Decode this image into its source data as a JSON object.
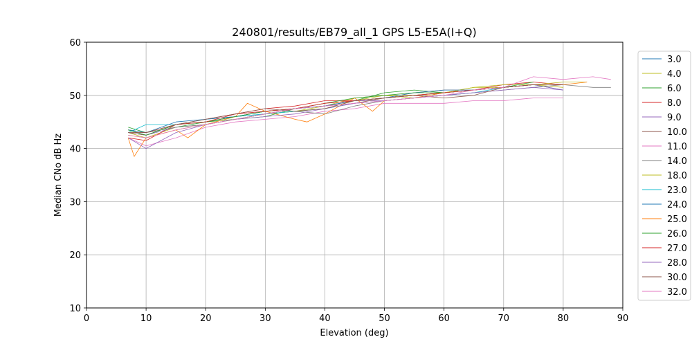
{
  "chart_data": {
    "type": "line",
    "title": "240801/results/EB79_all_1 GPS L5-E5A(I+Q)",
    "xlabel": "Elevation (deg)",
    "ylabel": "Median CNo dB Hz",
    "xlim": [
      0,
      90
    ],
    "ylim": [
      10,
      60
    ],
    "xticks": [
      "0",
      "10",
      "20",
      "30",
      "40",
      "50",
      "60",
      "70",
      "80",
      "90"
    ],
    "yticks": [
      "10",
      "20",
      "30",
      "40",
      "50",
      "60"
    ],
    "grid": true,
    "legend_position": "right",
    "series": [
      {
        "name": "3.0",
        "color": "#1f77b4",
        "x": [
          7,
          10,
          15,
          20,
          25,
          30,
          35,
          40,
          45,
          50,
          55,
          60,
          65,
          70,
          75,
          80
        ],
        "y": [
          43.5,
          42.5,
          44.5,
          45.0,
          46.0,
          46.5,
          47.5,
          48.0,
          49.0,
          49.5,
          50.0,
          50.5,
          51.0,
          51.5,
          52.0,
          51.0
        ]
      },
      {
        "name": "4.0",
        "color": "#bcbd22",
        "x": [
          7,
          10,
          15,
          20,
          25,
          30,
          35,
          40,
          45,
          50,
          55,
          60,
          65,
          70,
          75,
          80
        ],
        "y": [
          43.0,
          42.0,
          44.0,
          44.5,
          45.5,
          46.5,
          47.0,
          48.0,
          49.5,
          50.0,
          49.5,
          50.5,
          51.5,
          51.5,
          52.0,
          51.5
        ]
      },
      {
        "name": "6.0",
        "color": "#2ca02c",
        "x": [
          7,
          10,
          15,
          20,
          25,
          30,
          35,
          40,
          45,
          50,
          55,
          60,
          65,
          70,
          75
        ],
        "y": [
          44.0,
          43.0,
          44.0,
          45.0,
          45.5,
          46.0,
          47.5,
          48.0,
          49.0,
          50.5,
          51.0,
          50.5,
          51.0,
          51.5,
          52.0
        ]
      },
      {
        "name": "8.0",
        "color": "#d62728",
        "x": [
          7,
          10,
          15,
          20,
          25,
          30,
          35,
          40,
          45,
          50,
          55,
          60,
          65,
          70,
          75,
          80
        ],
        "y": [
          42.0,
          41.5,
          44.5,
          45.5,
          46.5,
          47.5,
          48.0,
          49.0,
          49.0,
          49.5,
          50.0,
          50.5,
          51.0,
          52.0,
          52.5,
          52.0
        ]
      },
      {
        "name": "9.0",
        "color": "#9467bd",
        "x": [
          7,
          10,
          15,
          20,
          25,
          30,
          35,
          40,
          45,
          50,
          55,
          60,
          65,
          70,
          75,
          80
        ],
        "y": [
          43.0,
          42.5,
          44.0,
          44.5,
          45.5,
          46.5,
          47.5,
          48.0,
          49.0,
          49.0,
          49.5,
          50.5,
          51.0,
          51.5,
          52.0,
          51.0
        ]
      },
      {
        "name": "10.0",
        "color": "#8c564b",
        "x": [
          7,
          10,
          15,
          20,
          25,
          30,
          35,
          40,
          45,
          50,
          55,
          60,
          65,
          70,
          75
        ],
        "y": [
          43.0,
          42.5,
          44.5,
          45.0,
          46.0,
          47.0,
          47.5,
          48.0,
          48.5,
          49.5,
          50.5,
          51.0,
          51.0,
          51.5,
          52.0
        ]
      },
      {
        "name": "11.0",
        "color": "#e377c2",
        "x": [
          7,
          10,
          15,
          20,
          25,
          30,
          35,
          40,
          45,
          50,
          55,
          60,
          65,
          70,
          75,
          80
        ],
        "y": [
          42.0,
          40.5,
          42.0,
          44.0,
          45.0,
          45.5,
          46.0,
          47.0,
          47.5,
          48.5,
          48.5,
          48.5,
          49.0,
          49.0,
          49.5,
          49.5
        ]
      },
      {
        "name": "14.0",
        "color": "#7f7f7f",
        "x": [
          7,
          10,
          15,
          20,
          25,
          30,
          35,
          40,
          45,
          50,
          55,
          60,
          65,
          70,
          75,
          80,
          85,
          88
        ],
        "y": [
          43.5,
          43.0,
          44.0,
          44.5,
          45.5,
          46.5,
          47.0,
          46.5,
          48.0,
          49.0,
          49.5,
          50.0,
          50.5,
          51.0,
          51.5,
          52.0,
          51.5,
          51.5
        ]
      },
      {
        "name": "18.0",
        "color": "#bcbd22",
        "x": [
          7,
          10,
          15,
          20,
          25,
          30,
          35,
          40,
          45,
          50,
          55,
          60,
          65,
          70,
          75,
          80,
          84
        ],
        "y": [
          42.5,
          42.0,
          43.5,
          44.5,
          45.5,
          46.5,
          47.0,
          47.5,
          49.0,
          50.0,
          50.0,
          50.5,
          51.5,
          52.0,
          52.0,
          52.5,
          52.5
        ]
      },
      {
        "name": "23.0",
        "color": "#17becf",
        "x": [
          7,
          10,
          15,
          20,
          25,
          30,
          35,
          40,
          45,
          50,
          55,
          60,
          65,
          70,
          75
        ],
        "y": [
          43.0,
          44.5,
          44.5,
          45.5,
          46.0,
          46.5,
          47.0,
          47.5,
          48.5,
          49.0,
          49.5,
          50.0,
          50.5,
          51.5,
          52.0
        ]
      },
      {
        "name": "24.0",
        "color": "#1f77b4",
        "x": [
          7,
          10,
          15,
          20,
          25,
          30,
          35,
          40,
          45,
          50,
          55,
          60,
          65,
          70,
          75
        ],
        "y": [
          43.5,
          43.0,
          45.0,
          45.5,
          46.0,
          47.0,
          47.5,
          48.0,
          49.0,
          49.5,
          50.5,
          51.0,
          51.0,
          51.5,
          52.0
        ]
      },
      {
        "name": "25.0",
        "color": "#ff7f0e",
        "x": [
          7,
          8,
          10,
          15,
          17,
          20,
          25,
          27,
          30,
          35,
          37,
          40,
          45,
          48,
          50,
          55,
          60,
          65,
          70,
          75,
          80,
          84
        ],
        "y": [
          42.0,
          38.5,
          42.0,
          43.5,
          42.0,
          44.5,
          46.0,
          48.5,
          47.0,
          45.5,
          45.0,
          46.5,
          49.5,
          47.0,
          49.0,
          49.5,
          50.5,
          51.0,
          51.5,
          52.0,
          52.0,
          52.5
        ]
      },
      {
        "name": "26.0",
        "color": "#2ca02c",
        "x": [
          7,
          10,
          15,
          20,
          25,
          30,
          35,
          40,
          45,
          50,
          55,
          60,
          65,
          70,
          75
        ],
        "y": [
          43.5,
          42.5,
          44.5,
          45.0,
          46.0,
          47.0,
          47.5,
          48.5,
          49.5,
          50.0,
          50.5,
          50.5,
          51.0,
          51.5,
          52.5
        ]
      },
      {
        "name": "27.0",
        "color": "#d62728",
        "x": [
          7,
          10,
          15,
          20,
          25,
          30,
          35,
          40,
          45,
          50,
          55,
          60,
          65,
          70,
          75
        ],
        "y": [
          43.0,
          43.0,
          44.5,
          45.0,
          46.5,
          47.0,
          47.5,
          48.5,
          49.0,
          49.5,
          50.0,
          50.5,
          51.0,
          51.5,
          52.0
        ]
      },
      {
        "name": "28.0",
        "color": "#9467bd",
        "x": [
          7,
          10,
          15,
          20,
          25,
          30,
          35,
          40,
          45,
          50,
          55,
          60,
          65,
          70,
          75,
          80
        ],
        "y": [
          42.0,
          40.0,
          43.0,
          44.5,
          45.5,
          46.0,
          46.5,
          47.5,
          48.5,
          49.0,
          49.5,
          50.0,
          50.5,
          51.0,
          51.5,
          51.0
        ]
      },
      {
        "name": "30.0",
        "color": "#8c564b",
        "x": [
          7,
          10,
          15,
          20,
          25,
          30,
          35,
          40,
          45,
          50,
          55,
          60,
          65,
          70,
          75,
          80
        ],
        "y": [
          43.0,
          43.0,
          44.5,
          45.5,
          46.5,
          47.5,
          47.0,
          47.5,
          49.0,
          49.5,
          50.0,
          49.5,
          50.0,
          51.5,
          52.0,
          52.0
        ]
      },
      {
        "name": "32.0",
        "color": "#e377c2",
        "x": [
          7,
          10,
          15,
          20,
          25,
          30,
          35,
          40,
          45,
          50,
          55,
          60,
          65,
          70,
          75,
          80,
          85,
          88
        ],
        "y": [
          42.5,
          42.0,
          43.5,
          44.5,
          45.5,
          46.5,
          47.5,
          48.0,
          48.5,
          49.0,
          49.5,
          50.0,
          51.0,
          51.5,
          53.5,
          53.0,
          53.5,
          53.0
        ]
      }
    ]
  }
}
